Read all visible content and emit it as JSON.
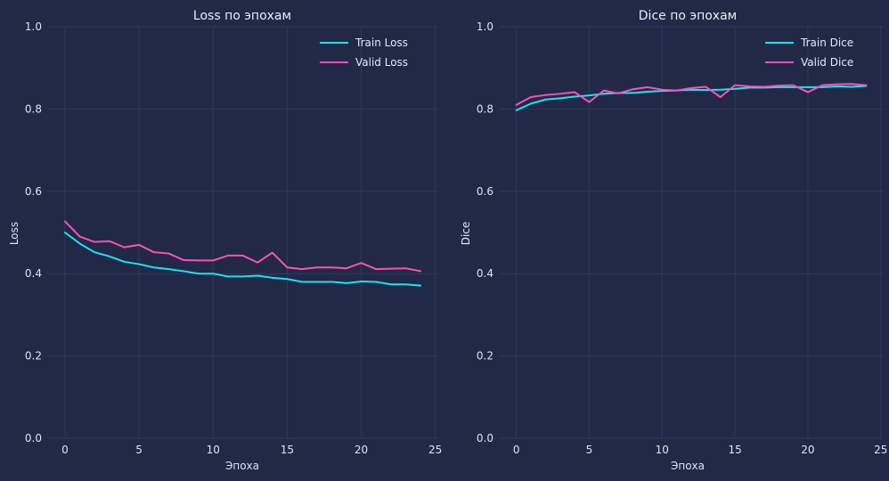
{
  "chart_data": [
    {
      "type": "line",
      "title": "Loss по эпохам",
      "xlabel": "Эпоха",
      "ylabel": "Loss",
      "xlim": [
        -1.2,
        25.2
      ],
      "ylim": [
        0,
        1
      ],
      "xticks": [
        0,
        5,
        10,
        15,
        20,
        25
      ],
      "yticks": [
        0.0,
        0.2,
        0.4,
        0.6,
        0.8,
        1.0
      ],
      "ytick_labels": [
        "0.0",
        "0.2",
        "0.4",
        "0.6",
        "0.8",
        "1.0"
      ],
      "grid": true,
      "legend_position": "top-right",
      "x": [
        0,
        1,
        2,
        3,
        4,
        5,
        6,
        7,
        8,
        9,
        10,
        11,
        12,
        13,
        14,
        15,
        16,
        17,
        18,
        19,
        20,
        21,
        22,
        23,
        24
      ],
      "series": [
        {
          "name": "Train Loss",
          "color": "#18e4f7",
          "values": [
            0.5,
            0.473,
            0.452,
            0.442,
            0.429,
            0.423,
            0.415,
            0.411,
            0.406,
            0.4,
            0.4,
            0.393,
            0.393,
            0.395,
            0.39,
            0.387,
            0.38,
            0.38,
            0.38,
            0.377,
            0.381,
            0.38,
            0.374,
            0.374,
            0.371
          ]
        },
        {
          "name": "Valid Loss",
          "color": "#ff4fb8",
          "values": [
            0.527,
            0.49,
            0.477,
            0.479,
            0.464,
            0.47,
            0.452,
            0.449,
            0.433,
            0.432,
            0.432,
            0.444,
            0.444,
            0.427,
            0.451,
            0.415,
            0.411,
            0.415,
            0.415,
            0.413,
            0.426,
            0.411,
            0.412,
            0.413,
            0.406
          ]
        }
      ]
    },
    {
      "type": "line",
      "title": "Dice по эпохам",
      "xlabel": "Эпоха",
      "ylabel": "Dice",
      "xlim": [
        -1.2,
        25.2
      ],
      "ylim": [
        0,
        1
      ],
      "xticks": [
        0,
        5,
        10,
        15,
        20,
        25
      ],
      "yticks": [
        0.0,
        0.2,
        0.4,
        0.6,
        0.8,
        1.0
      ],
      "ytick_labels": [
        "0.0",
        "0.2",
        "0.4",
        "0.6",
        "0.8",
        "1.0"
      ],
      "grid": true,
      "legend_position": "top-right",
      "x": [
        0,
        1,
        2,
        3,
        4,
        5,
        6,
        7,
        8,
        9,
        10,
        11,
        12,
        13,
        14,
        15,
        16,
        17,
        18,
        19,
        20,
        21,
        22,
        23,
        24
      ],
      "series": [
        {
          "name": "Train Dice",
          "color": "#18e4f7",
          "values": [
            0.797,
            0.813,
            0.823,
            0.826,
            0.83,
            0.833,
            0.837,
            0.839,
            0.839,
            0.842,
            0.844,
            0.845,
            0.847,
            0.846,
            0.847,
            0.849,
            0.852,
            0.852,
            0.853,
            0.853,
            0.853,
            0.853,
            0.855,
            0.854,
            0.856
          ]
        },
        {
          "name": "Valid Dice",
          "color": "#ff4fb8",
          "values": [
            0.81,
            0.829,
            0.834,
            0.837,
            0.841,
            0.817,
            0.845,
            0.838,
            0.848,
            0.853,
            0.847,
            0.845,
            0.851,
            0.854,
            0.829,
            0.858,
            0.855,
            0.854,
            0.857,
            0.858,
            0.841,
            0.858,
            0.86,
            0.861,
            0.858
          ]
        }
      ]
    }
  ]
}
